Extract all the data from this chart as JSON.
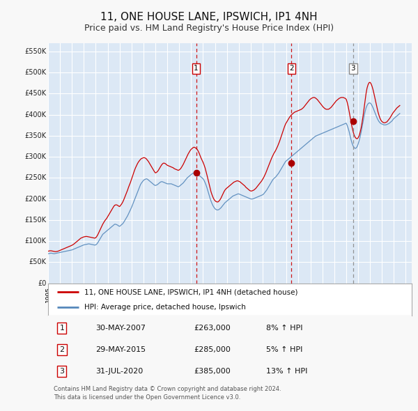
{
  "title": "11, ONE HOUSE LANE, IPSWICH, IP1 4NH",
  "subtitle": "Price paid vs. HM Land Registry's House Price Index (HPI)",
  "title_fontsize": 11,
  "subtitle_fontsize": 9,
  "bg_color": "#f8f8f8",
  "plot_bg_color": "#dce8f5",
  "grid_color": "#ffffff",
  "yticks": [
    0,
    50000,
    100000,
    150000,
    200000,
    250000,
    300000,
    350000,
    400000,
    450000,
    500000,
    550000
  ],
  "ytick_labels": [
    "£0",
    "£50K",
    "£100K",
    "£150K",
    "£200K",
    "£250K",
    "£300K",
    "£350K",
    "£400K",
    "£450K",
    "£500K",
    "£550K"
  ],
  "xmin": 1995.0,
  "xmax": 2025.5,
  "ymin": 0,
  "ymax": 570000,
  "legend_entry1": "11, ONE HOUSE LANE, IPSWICH, IP1 4NH (detached house)",
  "legend_entry2": "HPI: Average price, detached house, Ipswich",
  "sale_color": "#cc0000",
  "hpi_color": "#5588bb",
  "vline_color_red": "#cc0000",
  "vline_color_grey": "#888888",
  "dot_color": "#aa0000",
  "transactions": [
    {
      "num": 1,
      "date": "30-MAY-2007",
      "price": 263000,
      "pct": "8%",
      "dir": "↑",
      "x": 2007.42,
      "vline": "red"
    },
    {
      "num": 2,
      "date": "29-MAY-2015",
      "price": 285000,
      "pct": "5%",
      "dir": "↑",
      "x": 2015.42,
      "vline": "red"
    },
    {
      "num": 3,
      "date": "31-JUL-2020",
      "price": 385000,
      "pct": "13%",
      "dir": "↑",
      "x": 2020.58,
      "vline": "grey"
    }
  ],
  "footer1": "Contains HM Land Registry data © Crown copyright and database right 2024.",
  "footer2": "This data is licensed under the Open Government Licence v3.0.",
  "hpi_data_years": [
    1995.0,
    1995.083,
    1995.167,
    1995.25,
    1995.333,
    1995.417,
    1995.5,
    1995.583,
    1995.667,
    1995.75,
    1995.833,
    1995.917,
    1996.0,
    1996.083,
    1996.167,
    1996.25,
    1996.333,
    1996.417,
    1996.5,
    1996.583,
    1996.667,
    1996.75,
    1996.833,
    1996.917,
    1997.0,
    1997.083,
    1997.167,
    1997.25,
    1997.333,
    1997.417,
    1997.5,
    1997.583,
    1997.667,
    1997.75,
    1997.833,
    1997.917,
    1998.0,
    1998.083,
    1998.167,
    1998.25,
    1998.333,
    1998.417,
    1998.5,
    1998.583,
    1998.667,
    1998.75,
    1998.833,
    1998.917,
    1999.0,
    1999.083,
    1999.167,
    1999.25,
    1999.333,
    1999.417,
    1999.5,
    1999.583,
    1999.667,
    1999.75,
    1999.833,
    1999.917,
    2000.0,
    2000.083,
    2000.167,
    2000.25,
    2000.333,
    2000.417,
    2000.5,
    2000.583,
    2000.667,
    2000.75,
    2000.833,
    2000.917,
    2001.0,
    2001.083,
    2001.167,
    2001.25,
    2001.333,
    2001.417,
    2001.5,
    2001.583,
    2001.667,
    2001.75,
    2001.833,
    2001.917,
    2002.0,
    2002.083,
    2002.167,
    2002.25,
    2002.333,
    2002.417,
    2002.5,
    2002.583,
    2002.667,
    2002.75,
    2002.833,
    2002.917,
    2003.0,
    2003.083,
    2003.167,
    2003.25,
    2003.333,
    2003.417,
    2003.5,
    2003.583,
    2003.667,
    2003.75,
    2003.833,
    2003.917,
    2004.0,
    2004.083,
    2004.167,
    2004.25,
    2004.333,
    2004.417,
    2004.5,
    2004.583,
    2004.667,
    2004.75,
    2004.833,
    2004.917,
    2005.0,
    2005.083,
    2005.167,
    2005.25,
    2005.333,
    2005.417,
    2005.5,
    2005.583,
    2005.667,
    2005.75,
    2005.833,
    2005.917,
    2006.0,
    2006.083,
    2006.167,
    2006.25,
    2006.333,
    2006.417,
    2006.5,
    2006.583,
    2006.667,
    2006.75,
    2006.833,
    2006.917,
    2007.0,
    2007.083,
    2007.167,
    2007.25,
    2007.333,
    2007.417,
    2007.5,
    2007.583,
    2007.667,
    2007.75,
    2007.833,
    2007.917,
    2008.0,
    2008.083,
    2008.167,
    2008.25,
    2008.333,
    2008.417,
    2008.5,
    2008.583,
    2008.667,
    2008.75,
    2008.833,
    2008.917,
    2009.0,
    2009.083,
    2009.167,
    2009.25,
    2009.333,
    2009.417,
    2009.5,
    2009.583,
    2009.667,
    2009.75,
    2009.833,
    2009.917,
    2010.0,
    2010.083,
    2010.167,
    2010.25,
    2010.333,
    2010.417,
    2010.5,
    2010.583,
    2010.667,
    2010.75,
    2010.833,
    2010.917,
    2011.0,
    2011.083,
    2011.167,
    2011.25,
    2011.333,
    2011.417,
    2011.5,
    2011.583,
    2011.667,
    2011.75,
    2011.833,
    2011.917,
    2012.0,
    2012.083,
    2012.167,
    2012.25,
    2012.333,
    2012.417,
    2012.5,
    2012.583,
    2012.667,
    2012.75,
    2012.833,
    2012.917,
    2013.0,
    2013.083,
    2013.167,
    2013.25,
    2013.333,
    2013.417,
    2013.5,
    2013.583,
    2013.667,
    2013.75,
    2013.833,
    2013.917,
    2014.0,
    2014.083,
    2014.167,
    2014.25,
    2014.333,
    2014.417,
    2014.5,
    2014.583,
    2014.667,
    2014.75,
    2014.833,
    2014.917,
    2015.0,
    2015.083,
    2015.167,
    2015.25,
    2015.333,
    2015.417,
    2015.5,
    2015.583,
    2015.667,
    2015.75,
    2015.833,
    2015.917,
    2016.0,
    2016.083,
    2016.167,
    2016.25,
    2016.333,
    2016.417,
    2016.5,
    2016.583,
    2016.667,
    2016.75,
    2016.833,
    2016.917,
    2017.0,
    2017.083,
    2017.167,
    2017.25,
    2017.333,
    2017.417,
    2017.5,
    2017.583,
    2017.667,
    2017.75,
    2017.833,
    2017.917,
    2018.0,
    2018.083,
    2018.167,
    2018.25,
    2018.333,
    2018.417,
    2018.5,
    2018.583,
    2018.667,
    2018.75,
    2018.833,
    2018.917,
    2019.0,
    2019.083,
    2019.167,
    2019.25,
    2019.333,
    2019.417,
    2019.5,
    2019.583,
    2019.667,
    2019.75,
    2019.833,
    2019.917,
    2020.0,
    2020.083,
    2020.167,
    2020.25,
    2020.333,
    2020.417,
    2020.5,
    2020.583,
    2020.667,
    2020.75,
    2020.833,
    2020.917,
    2021.0,
    2021.083,
    2021.167,
    2021.25,
    2021.333,
    2021.417,
    2021.5,
    2021.583,
    2021.667,
    2021.75,
    2021.833,
    2021.917,
    2022.0,
    2022.083,
    2022.167,
    2022.25,
    2022.333,
    2022.417,
    2022.5,
    2022.583,
    2022.667,
    2022.75,
    2022.833,
    2022.917,
    2023.0,
    2023.083,
    2023.167,
    2023.25,
    2023.333,
    2023.417,
    2023.5,
    2023.583,
    2023.667,
    2023.75,
    2023.833,
    2023.917,
    2024.0,
    2024.083,
    2024.167,
    2024.25,
    2024.333,
    2024.417,
    2024.5
  ],
  "hpi_data_values": [
    70000,
    70500,
    71000,
    71500,
    71000,
    70500,
    70000,
    70500,
    71000,
    71500,
    72000,
    72500,
    73000,
    73500,
    74000,
    74500,
    75000,
    75500,
    76000,
    76500,
    77000,
    77500,
    78000,
    78500,
    79000,
    80000,
    81000,
    82000,
    83000,
    84000,
    85000,
    86000,
    87000,
    88000,
    89000,
    90000,
    91000,
    91500,
    92000,
    92500,
    93000,
    93500,
    93000,
    92500,
    92000,
    91500,
    91000,
    90500,
    91000,
    93000,
    96000,
    100000,
    104000,
    108000,
    112000,
    116000,
    118000,
    120000,
    122000,
    124000,
    126000,
    128000,
    130000,
    132000,
    134000,
    136000,
    138000,
    140000,
    140000,
    139000,
    138000,
    136000,
    135000,
    137000,
    139000,
    141000,
    144000,
    148000,
    152000,
    156000,
    160000,
    165000,
    170000,
    175000,
    180000,
    186000,
    192000,
    198000,
    204000,
    210000,
    216000,
    222000,
    228000,
    234000,
    238000,
    241000,
    244000,
    246000,
    247000,
    248000,
    247000,
    245000,
    243000,
    241000,
    239000,
    237000,
    235000,
    233000,
    232000,
    233000,
    234000,
    236000,
    238000,
    240000,
    241000,
    241000,
    240000,
    239000,
    238000,
    237000,
    236000,
    236000,
    236000,
    236000,
    236000,
    235000,
    234000,
    233000,
    232000,
    231000,
    230000,
    229000,
    230000,
    232000,
    234000,
    236000,
    238000,
    241000,
    244000,
    247000,
    250000,
    252000,
    254000,
    256000,
    258000,
    260000,
    261000,
    262000,
    262000,
    261000,
    260000,
    258000,
    256000,
    254000,
    252000,
    250000,
    248000,
    244000,
    239000,
    233000,
    226000,
    218000,
    210000,
    202000,
    195000,
    189000,
    184000,
    180000,
    177000,
    175000,
    174000,
    174000,
    175000,
    177000,
    179000,
    182000,
    185000,
    188000,
    191000,
    193000,
    195000,
    197000,
    199000,
    201000,
    203000,
    205000,
    207000,
    208000,
    209000,
    210000,
    211000,
    212000,
    212000,
    211000,
    210000,
    209000,
    208000,
    207000,
    206000,
    205000,
    204000,
    203000,
    202000,
    201000,
    200000,
    200000,
    200000,
    201000,
    202000,
    203000,
    204000,
    205000,
    206000,
    207000,
    208000,
    209000,
    210000,
    212000,
    215000,
    218000,
    221000,
    225000,
    229000,
    233000,
    237000,
    241000,
    245000,
    248000,
    250000,
    252000,
    255000,
    258000,
    261000,
    265000,
    269000,
    273000,
    277000,
    281000,
    285000,
    289000,
    291000,
    293000,
    295000,
    297000,
    299000,
    301000,
    303000,
    305000,
    307000,
    309000,
    311000,
    313000,
    315000,
    317000,
    319000,
    321000,
    323000,
    325000,
    327000,
    329000,
    331000,
    333000,
    335000,
    337000,
    339000,
    341000,
    343000,
    345000,
    347000,
    349000,
    350000,
    351000,
    352000,
    353000,
    354000,
    355000,
    356000,
    357000,
    358000,
    359000,
    360000,
    361000,
    362000,
    363000,
    364000,
    365000,
    366000,
    367000,
    368000,
    369000,
    370000,
    371000,
    372000,
    373000,
    374000,
    375000,
    376000,
    377000,
    378000,
    379000,
    380000,
    375000,
    368000,
    360000,
    350000,
    340000,
    332000,
    326000,
    322000,
    320000,
    321000,
    324000,
    330000,
    338000,
    347000,
    358000,
    370000,
    383000,
    396000,
    407000,
    416000,
    422000,
    426000,
    428000,
    428000,
    426000,
    422000,
    417000,
    411000,
    405000,
    399000,
    393000,
    388000,
    384000,
    381000,
    379000,
    378000,
    377000,
    376000,
    376000,
    376000,
    377000,
    378000,
    379000,
    381000,
    383000,
    385000,
    388000,
    391000,
    393000,
    395000,
    397000,
    399000,
    401000,
    403000
  ],
  "sale_data_years": [
    1995.0,
    1995.083,
    1995.167,
    1995.25,
    1995.333,
    1995.417,
    1995.5,
    1995.583,
    1995.667,
    1995.75,
    1995.833,
    1995.917,
    1996.0,
    1996.083,
    1996.167,
    1996.25,
    1996.333,
    1996.417,
    1996.5,
    1996.583,
    1996.667,
    1996.75,
    1996.833,
    1996.917,
    1997.0,
    1997.083,
    1997.167,
    1997.25,
    1997.333,
    1997.417,
    1997.5,
    1997.583,
    1997.667,
    1997.75,
    1997.833,
    1997.917,
    1998.0,
    1998.083,
    1998.167,
    1998.25,
    1998.333,
    1998.417,
    1998.5,
    1998.583,
    1998.667,
    1998.75,
    1998.833,
    1998.917,
    1999.0,
    1999.083,
    1999.167,
    1999.25,
    1999.333,
    1999.417,
    1999.5,
    1999.583,
    1999.667,
    1999.75,
    1999.833,
    1999.917,
    2000.0,
    2000.083,
    2000.167,
    2000.25,
    2000.333,
    2000.417,
    2000.5,
    2000.583,
    2000.667,
    2000.75,
    2000.833,
    2000.917,
    2001.0,
    2001.083,
    2001.167,
    2001.25,
    2001.333,
    2001.417,
    2001.5,
    2001.583,
    2001.667,
    2001.75,
    2001.833,
    2001.917,
    2002.0,
    2002.083,
    2002.167,
    2002.25,
    2002.333,
    2002.417,
    2002.5,
    2002.583,
    2002.667,
    2002.75,
    2002.833,
    2002.917,
    2003.0,
    2003.083,
    2003.167,
    2003.25,
    2003.333,
    2003.417,
    2003.5,
    2003.583,
    2003.667,
    2003.75,
    2003.833,
    2003.917,
    2004.0,
    2004.083,
    2004.167,
    2004.25,
    2004.333,
    2004.417,
    2004.5,
    2004.583,
    2004.667,
    2004.75,
    2004.833,
    2004.917,
    2005.0,
    2005.083,
    2005.167,
    2005.25,
    2005.333,
    2005.417,
    2005.5,
    2005.583,
    2005.667,
    2005.75,
    2005.833,
    2005.917,
    2006.0,
    2006.083,
    2006.167,
    2006.25,
    2006.333,
    2006.417,
    2006.5,
    2006.583,
    2006.667,
    2006.75,
    2006.833,
    2006.917,
    2007.0,
    2007.083,
    2007.167,
    2007.25,
    2007.333,
    2007.417,
    2007.5,
    2007.583,
    2007.667,
    2007.75,
    2007.833,
    2007.917,
    2008.0,
    2008.083,
    2008.167,
    2008.25,
    2008.333,
    2008.417,
    2008.5,
    2008.583,
    2008.667,
    2008.75,
    2008.833,
    2008.917,
    2009.0,
    2009.083,
    2009.167,
    2009.25,
    2009.333,
    2009.417,
    2009.5,
    2009.583,
    2009.667,
    2009.75,
    2009.833,
    2009.917,
    2010.0,
    2010.083,
    2010.167,
    2010.25,
    2010.333,
    2010.417,
    2010.5,
    2010.583,
    2010.667,
    2010.75,
    2010.833,
    2010.917,
    2011.0,
    2011.083,
    2011.167,
    2011.25,
    2011.333,
    2011.417,
    2011.5,
    2011.583,
    2011.667,
    2011.75,
    2011.833,
    2011.917,
    2012.0,
    2012.083,
    2012.167,
    2012.25,
    2012.333,
    2012.417,
    2012.5,
    2012.583,
    2012.667,
    2012.75,
    2012.833,
    2012.917,
    2013.0,
    2013.083,
    2013.167,
    2013.25,
    2013.333,
    2013.417,
    2013.5,
    2013.583,
    2013.667,
    2013.75,
    2013.833,
    2013.917,
    2014.0,
    2014.083,
    2014.167,
    2014.25,
    2014.333,
    2014.417,
    2014.5,
    2014.583,
    2014.667,
    2014.75,
    2014.833,
    2014.917,
    2015.0,
    2015.083,
    2015.167,
    2015.25,
    2015.333,
    2015.417,
    2015.5,
    2015.583,
    2015.667,
    2015.75,
    2015.833,
    2015.917,
    2016.0,
    2016.083,
    2016.167,
    2016.25,
    2016.333,
    2016.417,
    2016.5,
    2016.583,
    2016.667,
    2016.75,
    2016.833,
    2016.917,
    2017.0,
    2017.083,
    2017.167,
    2017.25,
    2017.333,
    2017.417,
    2017.5,
    2017.583,
    2017.667,
    2017.75,
    2017.833,
    2017.917,
    2018.0,
    2018.083,
    2018.167,
    2018.25,
    2018.333,
    2018.417,
    2018.5,
    2018.583,
    2018.667,
    2018.75,
    2018.833,
    2018.917,
    2019.0,
    2019.083,
    2019.167,
    2019.25,
    2019.333,
    2019.417,
    2019.5,
    2019.583,
    2019.667,
    2019.75,
    2019.833,
    2019.917,
    2020.0,
    2020.083,
    2020.167,
    2020.25,
    2020.333,
    2020.417,
    2020.5,
    2020.583,
    2020.667,
    2020.75,
    2020.833,
    2020.917,
    2021.0,
    2021.083,
    2021.167,
    2021.25,
    2021.333,
    2021.417,
    2021.5,
    2021.583,
    2021.667,
    2021.75,
    2021.833,
    2021.917,
    2022.0,
    2022.083,
    2022.167,
    2022.25,
    2022.333,
    2022.417,
    2022.5,
    2022.583,
    2022.667,
    2022.75,
    2022.833,
    2022.917,
    2023.0,
    2023.083,
    2023.167,
    2023.25,
    2023.333,
    2023.417,
    2023.5,
    2023.583,
    2023.667,
    2023.75,
    2023.833,
    2023.917,
    2024.0,
    2024.083,
    2024.167,
    2024.25,
    2024.333,
    2024.417,
    2024.5
  ],
  "sale_data_values": [
    76000,
    76500,
    77000,
    77000,
    76500,
    76000,
    75500,
    75000,
    75000,
    75500,
    76000,
    77000,
    78000,
    79000,
    80000,
    81000,
    82000,
    83000,
    84000,
    85000,
    86000,
    87000,
    88000,
    89000,
    90000,
    91500,
    93000,
    95000,
    97000,
    99000,
    101000,
    103000,
    105000,
    107000,
    108000,
    109000,
    110000,
    110500,
    111000,
    111000,
    110500,
    110000,
    109500,
    109000,
    108500,
    108000,
    107500,
    107000,
    108000,
    111000,
    115000,
    120000,
    125000,
    130000,
    135000,
    140000,
    144000,
    148000,
    151000,
    154000,
    158000,
    162000,
    166000,
    170000,
    174000,
    178000,
    182000,
    185000,
    186000,
    186000,
    185000,
    183000,
    182000,
    185000,
    188000,
    192000,
    197000,
    203000,
    209000,
    215000,
    221000,
    228000,
    234000,
    240000,
    247000,
    254000,
    261000,
    268000,
    274000,
    279000,
    284000,
    288000,
    291000,
    294000,
    296000,
    297000,
    298000,
    298000,
    297000,
    295000,
    292000,
    289000,
    285000,
    281000,
    277000,
    273000,
    269000,
    265000,
    262000,
    263000,
    265000,
    268000,
    272000,
    276000,
    280000,
    283000,
    285000,
    285000,
    284000,
    282000,
    280000,
    279000,
    278000,
    277000,
    276000,
    275000,
    274000,
    272000,
    271000,
    270000,
    269000,
    268000,
    269000,
    271000,
    274000,
    278000,
    282000,
    287000,
    292000,
    297000,
    302000,
    307000,
    311000,
    315000,
    318000,
    320000,
    322000,
    323000,
    322000,
    320000,
    318000,
    314000,
    309000,
    303000,
    297000,
    292000,
    287000,
    281000,
    274000,
    265000,
    256000,
    246000,
    236000,
    226000,
    217000,
    210000,
    204000,
    199000,
    196000,
    194000,
    193000,
    193000,
    195000,
    198000,
    202000,
    207000,
    212000,
    217000,
    221000,
    224000,
    226000,
    228000,
    230000,
    232000,
    234000,
    236000,
    238000,
    240000,
    241000,
    242000,
    243000,
    243000,
    242000,
    241000,
    239000,
    237000,
    235000,
    233000,
    231000,
    228000,
    226000,
    224000,
    222000,
    220000,
    219000,
    219000,
    220000,
    221000,
    223000,
    225000,
    228000,
    231000,
    234000,
    237000,
    240000,
    243000,
    247000,
    251000,
    256000,
    261000,
    267000,
    273000,
    279000,
    285000,
    291000,
    297000,
    302000,
    307000,
    311000,
    315000,
    320000,
    325000,
    331000,
    337000,
    344000,
    351000,
    358000,
    365000,
    372000,
    378000,
    382000,
    386000,
    390000,
    394000,
    397000,
    400000,
    402000,
    404000,
    406000,
    407000,
    408000,
    409000,
    410000,
    411000,
    412000,
    413000,
    415000,
    417000,
    420000,
    423000,
    426000,
    429000,
    432000,
    435000,
    437000,
    439000,
    440000,
    441000,
    441000,
    440000,
    438000,
    436000,
    433000,
    430000,
    427000,
    424000,
    421000,
    418000,
    416000,
    414000,
    413000,
    413000,
    413000,
    414000,
    416000,
    418000,
    421000,
    424000,
    427000,
    430000,
    433000,
    435000,
    437000,
    439000,
    440000,
    441000,
    441000,
    441000,
    440000,
    439000,
    437000,
    430000,
    420000,
    408000,
    395000,
    382000,
    370000,
    360000,
    352000,
    347000,
    344000,
    343000,
    345000,
    350000,
    358000,
    368000,
    381000,
    397000,
    415000,
    433000,
    450000,
    463000,
    471000,
    476000,
    477000,
    474000,
    468000,
    460000,
    450000,
    439000,
    428000,
    417000,
    407000,
    399000,
    392000,
    387000,
    384000,
    382000,
    381000,
    381000,
    382000,
    383000,
    386000,
    389000,
    392000,
    396000,
    400000,
    404000,
    407000,
    410000,
    413000,
    416000,
    418000,
    420000,
    422000
  ]
}
